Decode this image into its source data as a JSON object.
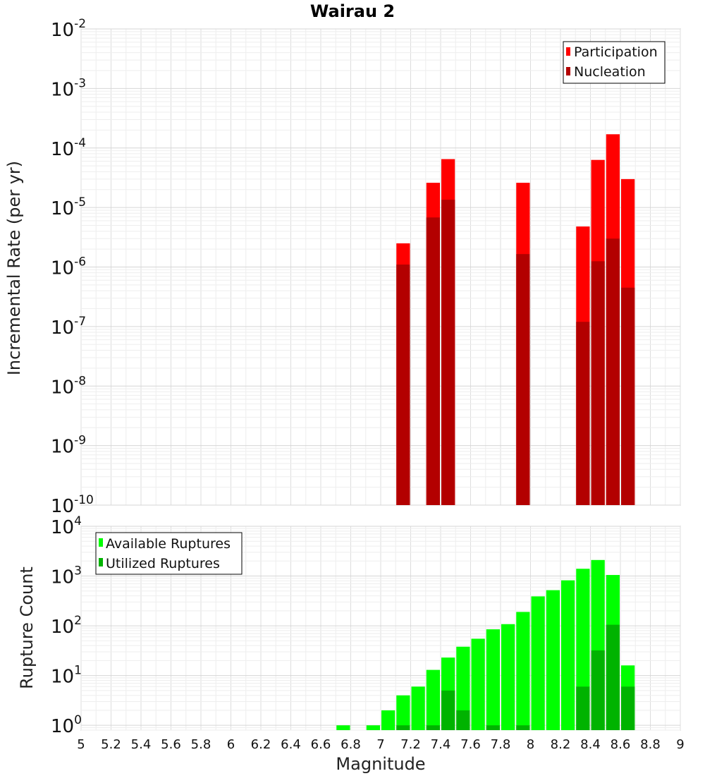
{
  "chart_data": [
    {
      "type": "bar",
      "title": "Wairau 2",
      "xlabel": "Magnitude",
      "ylabel": "Incremental Rate (per yr)",
      "y_scale": "log",
      "ylim": [
        1e-10,
        0.01
      ],
      "xlim": [
        5,
        9
      ],
      "y_ticks": [
        {
          "base": "10",
          "exp": "-10"
        },
        {
          "base": "10",
          "exp": "-9"
        },
        {
          "base": "10",
          "exp": "-8"
        },
        {
          "base": "10",
          "exp": "-7"
        },
        {
          "base": "10",
          "exp": "-6"
        },
        {
          "base": "10",
          "exp": "-5"
        },
        {
          "base": "10",
          "exp": "-4"
        },
        {
          "base": "10",
          "exp": "-3"
        },
        {
          "base": "10",
          "exp": "-2"
        }
      ],
      "legend": {
        "position": "top-right",
        "entries": [
          "Participation",
          "Nucleation"
        ]
      },
      "series": [
        {
          "name": "Participation",
          "color": "#ff0000",
          "x": [
            7.15,
            7.35,
            7.45,
            7.95,
            8.35,
            8.45,
            8.55,
            8.65
          ],
          "values": [
            2.5e-06,
            2.6e-05,
            6.5e-05,
            2.6e-05,
            4.8e-06,
            6.3e-05,
            0.00017,
            3e-05
          ]
        },
        {
          "name": "Nucleation",
          "color": "#b30000",
          "x": [
            7.15,
            7.35,
            7.45,
            7.95,
            8.35,
            8.45,
            8.55,
            8.65
          ],
          "values": [
            1.1e-06,
            6.8e-06,
            1.35e-05,
            1.65e-06,
            1.2e-07,
            1.25e-06,
            3e-06,
            4.5e-07
          ]
        }
      ],
      "grid": true
    },
    {
      "type": "bar",
      "xlabel": "Magnitude",
      "ylabel": "Rupture Count",
      "y_scale": "log",
      "ylim": [
        0.8,
        10000
      ],
      "xlim": [
        5,
        9
      ],
      "x_ticks": [
        "5",
        "5.2",
        "5.4",
        "5.6",
        "5.8",
        "6",
        "6.2",
        "6.4",
        "6.6",
        "6.8",
        "7",
        "7.2",
        "7.4",
        "7.6",
        "7.8",
        "8",
        "8.2",
        "8.4",
        "8.6",
        "8.8",
        "9"
      ],
      "y_ticks": [
        {
          "base": "10",
          "exp": "0"
        },
        {
          "base": "10",
          "exp": "1"
        },
        {
          "base": "10",
          "exp": "2"
        },
        {
          "base": "10",
          "exp": "3"
        },
        {
          "base": "10",
          "exp": "4"
        }
      ],
      "legend": {
        "position": "top-left",
        "entries": [
          "Available Ruptures",
          "Utilized Ruptures"
        ]
      },
      "series": [
        {
          "name": "Available Ruptures",
          "color": "#00ff00",
          "x": [
            6.75,
            6.95,
            7.05,
            7.15,
            7.25,
            7.35,
            7.45,
            7.55,
            7.65,
            7.75,
            7.85,
            7.95,
            8.05,
            8.15,
            8.25,
            8.35,
            8.45,
            8.55,
            8.65
          ],
          "values": [
            1,
            1,
            2,
            4,
            6,
            13,
            23,
            38,
            55,
            85,
            108,
            190,
            390,
            520,
            820,
            1400,
            2100,
            1050,
            16
          ]
        },
        {
          "name": "Utilized Ruptures",
          "color": "#00b300",
          "x": [
            7.15,
            7.35,
            7.45,
            7.55,
            7.75,
            7.95,
            8.35,
            8.45,
            8.55,
            8.65
          ],
          "values": [
            1,
            1,
            5,
            2,
            1,
            1,
            6,
            32,
            105,
            6
          ]
        }
      ],
      "grid": true
    }
  ]
}
